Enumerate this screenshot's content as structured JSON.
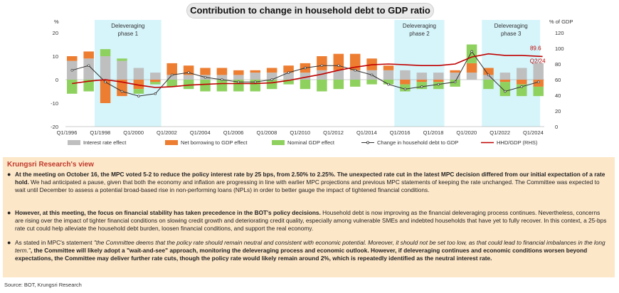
{
  "title": "Contribution to change in household debt to GDP ratio",
  "chart_data": {
    "type": "bar",
    "y_left_unit": "%",
    "y_right_unit": "% of GDP",
    "y_left_ticks": [
      "20",
      "10",
      "0",
      "-10",
      "-20"
    ],
    "y_right_ticks": [
      "120",
      "100",
      "80",
      "60",
      "40",
      "20",
      "0"
    ],
    "ylim_left": [
      -20,
      20
    ],
    "ylim_right": [
      0,
      120
    ],
    "x_tick_labels": [
      "Q1/1996",
      "Q1/1998",
      "Q1/2000",
      "Q1/2002",
      "Q1/2004",
      "Q1/2006",
      "Q1/2008",
      "Q1/2010",
      "Q1/2012",
      "Q1/2014",
      "Q1/2016",
      "Q1/2018",
      "Q1/2020",
      "Q1/2022",
      "Q1/2024"
    ],
    "shaded_regions": [
      {
        "label_line1": "Deleveraging",
        "label_line2": "phase 1",
        "start": 1997.75,
        "end": 2001.75
      },
      {
        "label_line1": "Deleveraging",
        "label_line2": "phase 2",
        "start": 2015.75,
        "end": 2018.75
      },
      {
        "label_line1": "Deleveraging",
        "label_line2": "phase 3",
        "start": 2021.0,
        "end": 2024.5
      }
    ],
    "annotations": [
      {
        "text": "89.6",
        "color": "#c00000"
      },
      {
        "text": "Q2/24",
        "color": "#c00000"
      }
    ],
    "legend": [
      {
        "label": "Interest rate effect",
        "color": "#bfbfbf",
        "kind": "box"
      },
      {
        "label": "Net borrowing to GDP effect",
        "color": "#ed7d31",
        "kind": "box"
      },
      {
        "label": "Nominal GDP effect",
        "color": "#8fd15f",
        "kind": "box"
      },
      {
        "label": "Change in household debt to GDP",
        "color": "#333333",
        "kind": "dotline"
      },
      {
        "label": "HHD/GDP (RHS)",
        "color": "#c00000",
        "kind": "line"
      }
    ],
    "series": [
      {
        "name": "Interest rate effect",
        "color": "#bfbfbf",
        "axis": "left",
        "x": [
          1996,
          1997,
          1998,
          1999,
          2000,
          2001,
          2002,
          2003,
          2004,
          2005,
          2006,
          2007,
          2008,
          2009,
          2010,
          2011,
          2012,
          2013,
          2014,
          2015,
          2016,
          2017,
          2018,
          2019,
          2020,
          2021,
          2022,
          2023,
          2024
        ],
        "values": [
          8,
          9,
          10,
          8,
          5,
          3,
          2,
          2,
          2,
          2,
          2,
          3,
          3,
          3,
          3,
          4,
          4,
          4,
          4,
          4,
          4,
          3,
          3,
          3,
          3,
          2,
          3,
          5,
          7
        ]
      },
      {
        "name": "Net borrowing to GDP effect",
        "color": "#ed7d31",
        "axis": "left",
        "x": [
          1996,
          1997,
          1998,
          1999,
          2000,
          2001,
          2002,
          2003,
          2004,
          2005,
          2006,
          2007,
          2008,
          2009,
          2010,
          2011,
          2012,
          2013,
          2014,
          2015,
          2016,
          2017,
          2018,
          2019,
          2020,
          2021,
          2022,
          2023,
          2024
        ],
        "values": [
          2,
          3,
          -10,
          -7,
          -4,
          -1,
          5,
          4,
          3,
          3,
          2,
          1,
          2,
          3,
          4,
          6,
          7,
          7,
          5,
          2,
          -2,
          -1,
          -1,
          1,
          4,
          3,
          -1,
          -2,
          -3
        ]
      },
      {
        "name": "Nominal GDP effect",
        "color": "#8fd15f",
        "axis": "left",
        "x": [
          1996,
          1997,
          1998,
          1999,
          2000,
          2001,
          2002,
          2003,
          2004,
          2005,
          2006,
          2007,
          2008,
          2009,
          2010,
          2011,
          2012,
          2013,
          2014,
          2015,
          2016,
          2017,
          2018,
          2019,
          2020,
          2021,
          2022,
          2023,
          2024
        ],
        "values": [
          -6,
          -5,
          3,
          1,
          -2,
          -1,
          -3,
          -4,
          -5,
          -5,
          -5,
          -5,
          -4,
          -2,
          -4,
          -5,
          -4,
          -3,
          -2,
          -2,
          -3,
          -3,
          -3,
          -3,
          8,
          -4,
          -6,
          -5,
          -4
        ]
      },
      {
        "name": "Change in household debt to GDP",
        "color": "#333333",
        "axis": "left",
        "x": [
          1996,
          1997,
          1998,
          1999,
          2000,
          2001,
          2002,
          2003,
          2004,
          2005,
          2006,
          2007,
          2008,
          2009,
          2010,
          2011,
          2012,
          2013,
          2014,
          2015,
          2016,
          2017,
          2018,
          2019,
          2020,
          2021,
          2022,
          2023,
          2024
        ],
        "values": [
          4,
          6,
          -1,
          -5,
          -7,
          -6,
          2,
          3,
          1,
          0,
          -1,
          -1,
          0,
          3,
          5,
          6,
          6,
          4,
          2,
          -2,
          -4,
          -3,
          -2,
          -1,
          12,
          2,
          -5,
          -3,
          -1
        ]
      },
      {
        "name": "HHD/GDP (RHS)",
        "color": "#c00000",
        "axis": "right",
        "x": [
          1996,
          1997,
          1998,
          1999,
          2000,
          2001,
          2002,
          2003,
          2004,
          2005,
          2006,
          2007,
          2008,
          2009,
          2010,
          2011,
          2012,
          2013,
          2014,
          2015,
          2016,
          2017,
          2018,
          2019,
          2020,
          2021,
          2022,
          2023,
          2024.25
        ],
        "values": [
          55,
          58,
          60,
          57,
          53,
          50,
          51,
          53,
          54,
          55,
          55,
          55,
          56,
          59,
          63,
          67,
          72,
          76,
          79,
          80,
          79,
          78,
          78,
          80,
          89,
          93,
          91,
          91,
          89.6
        ]
      }
    ]
  },
  "panel": {
    "heading": "Krungsri Research's view",
    "bullets": [
      {
        "bold": "At the meeting on October 16, the MPC voted 5-2 to reduce the policy interest rate by 25 bps, from 2.50% to 2.25%. The unexpected rate cut in the latest MPC decision differed from our initial expectation of a rate hold.",
        "normal": " We had anticipated a pause, given that both the economy and inflation are progressing in line with earlier MPC projections and previous MPC statements of keeping the rate unchanged. The Committee was expected to wait until December to assess a potential broad-based rise in non-performing loans (NPLs) in order to better gauge the impact of tightened financial conditions."
      },
      {
        "bold": "However, at this meeting, the focus on financial stability has taken precedence in the BOT's policy decisions.",
        "normal": " Household debt is now improving as the financial deleveraging process continues. Nevertheless, concerns are rising over the impact of tighter financial conditions on slowing credit growth and deteriorating credit quality, especially among vulnerable SMEs and indebted households that have yet to fully recover. In this context, a 25-bps rate cut could help alleviate the household debt burden, loosen financial conditions, and support the real economy."
      },
      {
        "normal1": "As stated in MPC's statement ",
        "italic": "\"the Committee deems that the policy rate should remain neutral and consistent with economic potential. Moreover, it should not be set too low, as that could lead to financial imbalances in the long term.\"",
        "bold": ", the Committee will likely adopt a \"wait-and-see\" approach, monitoring the deleveraging process and economic outlook. However, if deleveraging continues and economic conditions worsen beyond expectations, the Committee may deliver further rate cuts, though the policy rate would likely remain around 2%, which is repeatedly identified as the neutral interest rate."
      }
    ]
  },
  "source": "Source: BOT, Krungsri Research"
}
